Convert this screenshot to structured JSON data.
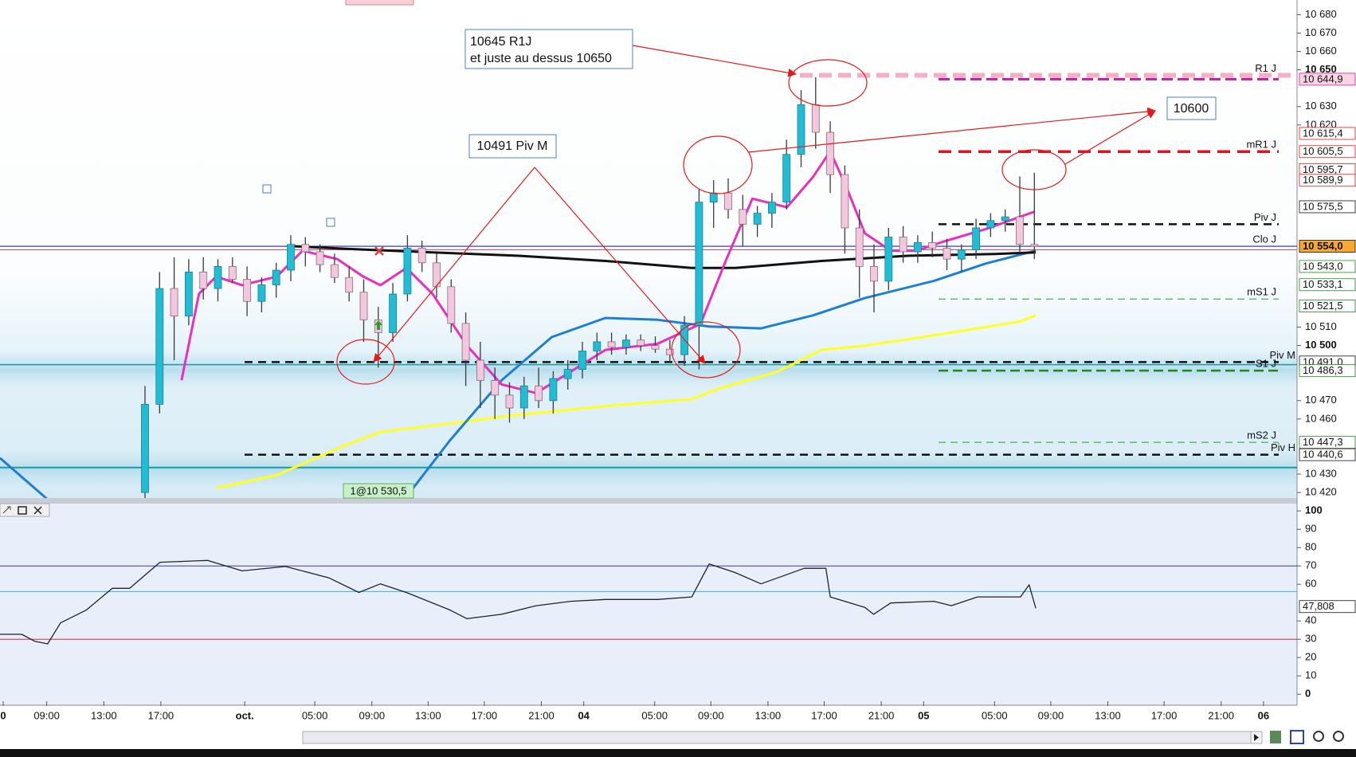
{
  "chart_data": [
    {
      "type": "candlestick",
      "ylim": [
        10417,
        10688
      ],
      "yticks": [
        {
          "value": 10420,
          "label": "10 420"
        },
        {
          "value": 10430,
          "label": "10 430"
        },
        {
          "value": 10460,
          "label": "10 460"
        },
        {
          "value": 10470,
          "label": "10 470"
        },
        {
          "value": 10500,
          "label": "10 500"
        },
        {
          "value": 10510,
          "label": "10 510"
        },
        {
          "value": 10620,
          "label": "10 620"
        },
        {
          "value": 10630,
          "label": "10 630"
        },
        {
          "value": 10650,
          "label": "10 650"
        },
        {
          "value": 10660,
          "label": "10 660"
        },
        {
          "value": 10670,
          "label": "10 670"
        },
        {
          "value": 10680,
          "label": "10 680"
        }
      ],
      "xticks": [
        "0",
        "09:00",
        "13:00",
        "17:00",
        "oct.",
        "05:00",
        "09:00",
        "13:00",
        "17:00",
        "21:00",
        "04",
        "05:00",
        "09:00",
        "13:00",
        "17:00",
        "21:00",
        "05",
        "05:00",
        "09:00",
        "13:00",
        "17:00",
        "21:00",
        "06"
      ],
      "up_color": "#22bcd4",
      "down_color": "#f3c8df",
      "ohlc": [
        [
          10420,
          10478,
          10415,
          10468
        ],
        [
          10468,
          10540,
          10463,
          10531
        ],
        [
          10531,
          10548,
          10492,
          10516
        ],
        [
          10516,
          10547,
          10511,
          10540
        ],
        [
          10540,
          10548,
          10525,
          10531
        ],
        [
          10531,
          10547,
          10524,
          10543
        ],
        [
          10543,
          10548,
          10534,
          10536
        ],
        [
          10536,
          10543,
          10516,
          10524
        ],
        [
          10524,
          10537,
          10518,
          10533
        ],
        [
          10533,
          10545,
          10526,
          10541
        ],
        [
          10541,
          10560,
          10535,
          10555
        ],
        [
          10555,
          10559,
          10543,
          10551
        ],
        [
          10551,
          10555,
          10540,
          10544
        ],
        [
          10544,
          10550,
          10534,
          10537
        ],
        [
          10537,
          10543,
          10524,
          10529
        ],
        [
          10529,
          10536,
          10502,
          10514
        ],
        [
          10514,
          10521,
          10488,
          10507
        ],
        [
          10507,
          10534,
          10502,
          10528
        ],
        [
          10528,
          10560,
          10524,
          10553
        ],
        [
          10553,
          10557,
          10540,
          10545
        ],
        [
          10545,
          10550,
          10526,
          10532
        ],
        [
          10532,
          10536,
          10507,
          10512
        ],
        [
          10512,
          10518,
          10478,
          10492
        ],
        [
          10492,
          10502,
          10466,
          10481
        ],
        [
          10481,
          10488,
          10460,
          10473
        ],
        [
          10473,
          10480,
          10458,
          10466
        ],
        [
          10466,
          10483,
          10460,
          10478
        ],
        [
          10478,
          10488,
          10466,
          10470
        ],
        [
          10470,
          10486,
          10463,
          10482
        ],
        [
          10482,
          10492,
          10476,
          10487
        ],
        [
          10487,
          10502,
          10482,
          10497
        ],
        [
          10497,
          10507,
          10492,
          10502
        ],
        [
          10502,
          10507,
          10495,
          10499
        ],
        [
          10499,
          10506,
          10495,
          10503
        ],
        [
          10503,
          10506,
          10497,
          10500
        ],
        [
          10500,
          10505,
          10496,
          10498
        ],
        [
          10498,
          10503,
          10491,
          10495
        ],
        [
          10495,
          10516,
          10489,
          10511
        ],
        [
          10511,
          10585,
          10487,
          10578
        ],
        [
          10578,
          10590,
          10564,
          10583
        ],
        [
          10583,
          10591,
          10569,
          10574
        ],
        [
          10574,
          10582,
          10554,
          10566
        ],
        [
          10566,
          10576,
          10559,
          10572
        ],
        [
          10572,
          10583,
          10564,
          10578
        ],
        [
          10578,
          10612,
          10574,
          10604
        ],
        [
          10604,
          10639,
          10597,
          10631
        ],
        [
          10631,
          10646,
          10607,
          10616
        ],
        [
          10616,
          10622,
          10583,
          10593
        ],
        [
          10593,
          10598,
          10550,
          10564
        ],
        [
          10564,
          10574,
          10526,
          10543
        ],
        [
          10543,
          10555,
          10518,
          10535
        ],
        [
          10535,
          10564,
          10530,
          10559
        ],
        [
          10559,
          10565,
          10545,
          10551
        ],
        [
          10551,
          10560,
          10545,
          10556
        ],
        [
          10556,
          10562,
          10548,
          10553
        ],
        [
          10553,
          10558,
          10541,
          10547
        ],
        [
          10547,
          10555,
          10540,
          10552
        ],
        [
          10552,
          10569,
          10547,
          10564
        ],
        [
          10564,
          10572,
          10559,
          10568
        ],
        [
          10568,
          10574,
          10562,
          10570
        ],
        [
          10570,
          10592,
          10550,
          10555
        ],
        [
          10555,
          10594,
          10547,
          10554
        ]
      ],
      "overlays": [
        {
          "color": "#ffff22",
          "x": [
            4.88,
            9.04,
            13.78,
            16.15,
            20.9,
            25.64,
            31.58,
            37.5,
            39.3,
            43.4,
            46.4,
            49.4,
            55.3,
            60.0,
            61.1
          ],
          "values": [
            10422.4,
            10429.4,
            10445.9,
            10452.9,
            10457.6,
            10462.3,
            10467,
            10470.8,
            10476.4,
            10485.8,
            10497.6,
            10499.9,
            10507,
            10513.1,
            10516.4
          ]
        },
        {
          "color": "#1e7fd0",
          "x": [
            -9.95,
            -6.68
          ],
          "values": [
            10438.8,
            10416.2
          ]
        },
        {
          "color": "#1e7fd0",
          "x": [
            17.93,
            20.9,
            24.46,
            27.9,
            31.58,
            35.14,
            38.7,
            42.25,
            45.81,
            49.37,
            54.12,
            57.68,
            61.1
          ],
          "values": [
            10417.7,
            10448.2,
            10481.1,
            10504.6,
            10515,
            10514,
            10510.3,
            10509.3,
            10516.4,
            10525.8,
            10535.2,
            10544.6,
            10551.6
          ]
        },
        {
          "color": "#111111",
          "x": [
            10.22,
            13.78,
            19.72,
            25.64,
            31.58,
            37.5,
            40.5,
            46.4,
            52.3,
            58.3,
            61.1
          ],
          "values": [
            10554,
            10552.6,
            10550.7,
            10548.8,
            10546,
            10542.2,
            10542.2,
            10546,
            10548.8,
            10549.8,
            10550.7
          ]
        },
        {
          "color": "#e830c0",
          "x": [
            2.51,
            3.7,
            4.88,
            6.66,
            9.04,
            10.81,
            13.19,
            14.97,
            16.15,
            17.93,
            19.72,
            22.09,
            24.46,
            26.83,
            29.2,
            31.58,
            35.14,
            38.1,
            39.88,
            41.66,
            44.03,
            45.81,
            47.0,
            48.19,
            49.37,
            51.15,
            52.93,
            54.71,
            57.68,
            61.0
          ],
          "values": [
            10481.1,
            10528.1,
            10537.5,
            10532.8,
            10537.5,
            10551.6,
            10547,
            10537.5,
            10532.8,
            10542.2,
            10528.1,
            10499.9,
            10478.8,
            10474.1,
            10485.8,
            10497.6,
            10500.9,
            10511.7,
            10547,
            10579.9,
            10575.2,
            10591.6,
            10605.7,
            10584.6,
            10561.1,
            10551.6,
            10551.6,
            10556.4,
            10563.4,
            10572.8
          ]
        }
      ],
      "levels": [
        {
          "name": "R1 J",
          "value": 10647,
          "color": "#f08cb0",
          "dashed": true
        },
        {
          "value": 10644.9,
          "color": "#c020a0",
          "dashed": true
        },
        {
          "name": "mR1 J",
          "value": 10605.5,
          "color": "#e8101a",
          "dashed": true
        },
        {
          "name": "Piv J",
          "value": 10566,
          "color": "#111111",
          "dashed": true
        },
        {
          "name": "Clo J",
          "value": 10554,
          "color": "#26308a",
          "dashed": false
        },
        {
          "value": 10552.1,
          "color": "#c05878",
          "dashed": false
        },
        {
          "name": "mS1 J",
          "value": 10525.3,
          "color": "#2a9a2a",
          "dashed": true
        },
        {
          "name": "Piv M",
          "value": 10491,
          "color": "#111111",
          "dashed": true
        },
        {
          "value": 10489.6,
          "color": "#1a9aa0",
          "dashed": false
        },
        {
          "name": "S1 J",
          "value": 10486.3,
          "color": "#1a8a1a",
          "dashed": true
        },
        {
          "name": "mS2 J",
          "value": 10447.3,
          "color": "#2a9a2a",
          "dashed": true
        },
        {
          "name": "Piv H",
          "value": 10440.6,
          "color": "#111111",
          "dashed": true
        },
        {
          "value": 10433.6,
          "color": "#1a9aa0",
          "dashed": false
        }
      ],
      "price_labels": [
        {
          "value": 10644.9,
          "label": "10 644,9",
          "color": "#c020a0",
          "background": "#f8d4e4"
        },
        {
          "value": 10615.4,
          "label": "10 615,4",
          "color": "#e01818",
          "background": "#ffffff"
        },
        {
          "value": 10605.5,
          "label": "10 605,5",
          "color": "#e01818",
          "background": "#ffffff"
        },
        {
          "value": 10595.7,
          "label": "10 595,7",
          "color": "#e01818",
          "background": "#ffffff"
        },
        {
          "value": 10589.9,
          "label": "10 589,9",
          "color": "#e01818",
          "background": "#ffffff"
        },
        {
          "value": 10575.5,
          "label": "10 575,5",
          "color": "#111111",
          "background": "#ffffff"
        },
        {
          "value": 10554.0,
          "label": "10 554,0",
          "color": "#111111",
          "background": "#f7a830"
        },
        {
          "value": 10543.0,
          "label": "10 543,0",
          "color": "#1a8a1a",
          "background": "#ffffff"
        },
        {
          "value": 10533.1,
          "label": "10 533,1",
          "color": "#1a8a1a",
          "background": "#ffffff"
        },
        {
          "value": 10521.5,
          "label": "10 521,5",
          "color": "#1a8a1a",
          "background": "#ffffff"
        },
        {
          "value": 10491.0,
          "label": "10 491,0",
          "color": "#111111",
          "background": "#ffffff"
        },
        {
          "value": 10486.3,
          "label": "10 486,3",
          "color": "#1a8a1a",
          "background": "#ffffff"
        },
        {
          "value": 10447.3,
          "label": "10 447,3",
          "color": "#1a8a1a",
          "background": "#ffffff"
        },
        {
          "value": 10440.6,
          "label": "10 440,6",
          "color": "#111111",
          "background": "#ffffff"
        }
      ]
    },
    {
      "type": "line",
      "ylim": [
        -6,
        104
      ],
      "yticks": [
        0,
        10,
        20,
        30,
        40,
        60,
        70,
        80,
        90,
        100
      ],
      "levels": [
        {
          "value": 70,
          "color": "#3a3aa0"
        },
        {
          "value": 56,
          "color": "#3ab0e0"
        },
        {
          "value": 30,
          "color": "#d03030"
        }
      ],
      "series": [
        {
          "color": "#222222",
          "x": [
            -9.95,
            -8.46,
            -7.57,
            -6.68,
            -5.79,
            -4.01,
            -2.24,
            -1.05,
            1.03,
            4.29,
            6.66,
            9.63,
            12.6,
            14.67,
            16.15,
            17.93,
            20.9,
            22.09,
            24.46,
            26.83,
            29.2,
            31.58,
            35.14,
            37.5,
            38.7,
            40.47,
            42.25,
            45.22,
            46.7,
            47.0,
            49.37,
            49.97,
            51.15,
            54.12,
            55.3,
            57.1,
            60.05,
            60.64,
            61.1
          ],
          "values": [
            32.7,
            32.7,
            28.9,
            27.5,
            38.9,
            46,
            57.8,
            57.8,
            72,
            73,
            67.3,
            69.7,
            63.5,
            55.5,
            60.2,
            55.5,
            46,
            41.2,
            43.6,
            48.3,
            50.7,
            51.7,
            51.7,
            53.1,
            71.1,
            66.4,
            60.2,
            68.7,
            68.7,
            53.1,
            47.4,
            43.6,
            49.8,
            50.7,
            48.3,
            53.1,
            53.1,
            59.7,
            46.9
          ]
        }
      ],
      "price_labels": [
        {
          "value": 47.808,
          "label": "47,808",
          "color": "#111111",
          "background": "#ffffff"
        }
      ]
    }
  ],
  "annotations": [
    "10645 R1J",
    "et juste au dessus 10650",
    "10491 Piv M",
    "10600",
    "1@10 530,5"
  ]
}
